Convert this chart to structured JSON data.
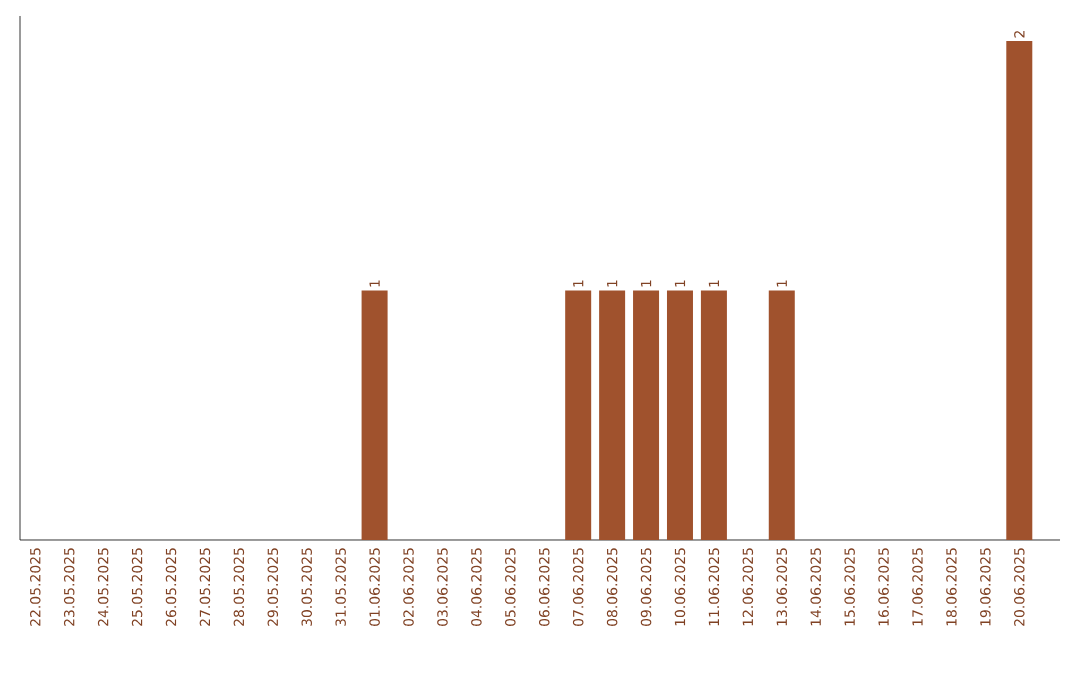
{
  "chart_data": {
    "type": "bar",
    "categories": [
      "22.05.2025",
      "23.05.2025",
      "24.05.2025",
      "25.05.2025",
      "26.05.2025",
      "27.05.2025",
      "28.05.2025",
      "29.05.2025",
      "30.05.2025",
      "31.05.2025",
      "01.06.2025",
      "02.06.2025",
      "03.06.2025",
      "04.06.2025",
      "05.06.2025",
      "06.06.2025",
      "07.06.2025",
      "08.06.2025",
      "09.06.2025",
      "10.06.2025",
      "11.06.2025",
      "12.06.2025",
      "13.06.2025",
      "14.06.2025",
      "15.06.2025",
      "16.06.2025",
      "17.06.2025",
      "18.06.2025",
      "19.06.2025",
      "20.06.2025"
    ],
    "values": [
      0,
      0,
      0,
      0,
      0,
      0,
      0,
      0,
      0,
      0,
      1,
      0,
      0,
      0,
      0,
      0,
      1,
      1,
      1,
      1,
      1,
      0,
      1,
      0,
      0,
      0,
      0,
      0,
      0,
      2
    ],
    "value_labels": [
      null,
      null,
      null,
      null,
      null,
      null,
      null,
      null,
      null,
      null,
      "1",
      null,
      null,
      null,
      null,
      null,
      "1",
      "1",
      "1",
      "1",
      "1",
      null,
      "1",
      null,
      null,
      null,
      null,
      null,
      null,
      "2"
    ],
    "color": "#a0522d",
    "tick_labels": "x"
  }
}
